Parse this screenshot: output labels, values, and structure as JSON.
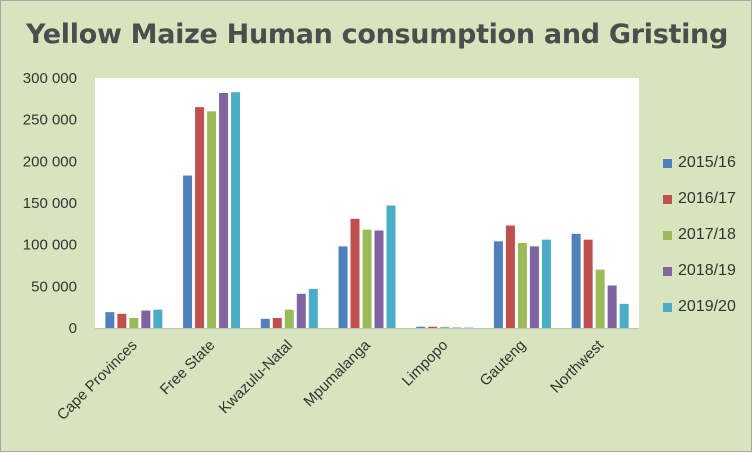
{
  "chart_data": {
    "type": "bar",
    "title": "Yellow Maize Human consumption and Gristing",
    "xlabel": "",
    "ylabel": "",
    "ylim": [
      0,
      300000
    ],
    "yticks": [
      "0",
      "50 000",
      "100 000",
      "150 000",
      "200 000",
      "250 000",
      "300 000"
    ],
    "categories": [
      "Cape Provinces",
      "Free State",
      "Kwazulu-Natal",
      "Mpumalanga",
      "Limpopo",
      "Gauteng",
      "Northwest"
    ],
    "series": [
      {
        "name": "2015/16",
        "color": "#4f81bd",
        "values": [
          19000,
          183000,
          11000,
          98000,
          1500,
          104000,
          113000
        ]
      },
      {
        "name": "2016/17",
        "color": "#c0504d",
        "values": [
          17000,
          265000,
          12000,
          131000,
          1500,
          123000,
          106000
        ]
      },
      {
        "name": "2017/18",
        "color": "#9bbb59",
        "values": [
          12000,
          260000,
          22000,
          118000,
          1500,
          102000,
          70000
        ]
      },
      {
        "name": "2018/19",
        "color": "#8064a2",
        "values": [
          21000,
          282000,
          41000,
          117000,
          500,
          98000,
          51000
        ]
      },
      {
        "name": "2019/20",
        "color": "#4bacc6",
        "values": [
          22000,
          283000,
          47000,
          147000,
          500,
          106000,
          29000
        ]
      }
    ],
    "grid": false,
    "legend_position": "right"
  }
}
